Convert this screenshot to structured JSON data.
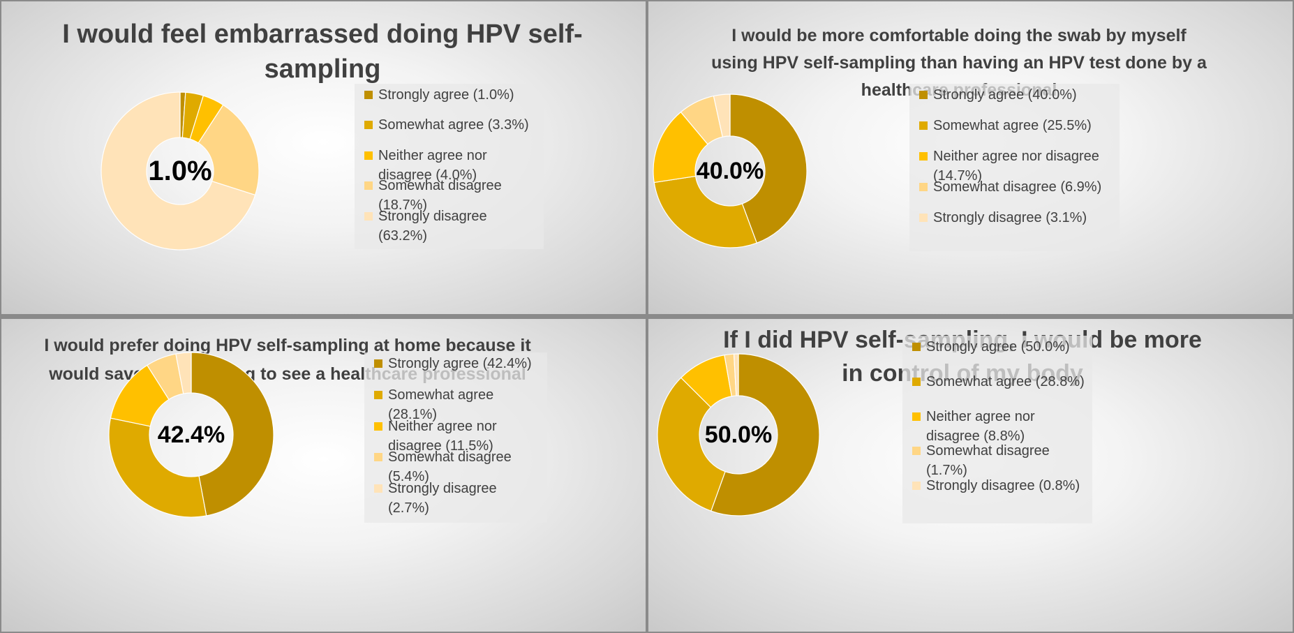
{
  "colors": [
    "#bf8f00",
    "#dfaa00",
    "#ffc000",
    "#ffd685",
    "#ffe3b8"
  ],
  "chart_data": [
    {
      "type": "pie",
      "title": "I would feel embarrassed doing HPV self-sampling",
      "center_label": "1.0%",
      "categories": [
        "Strongly agree",
        "Somewhat agree",
        "Neither agree nor disagree",
        "Somewhat disagree",
        "Strongly disagree"
      ],
      "values": [
        1.0,
        3.3,
        4.0,
        18.7,
        63.2
      ],
      "legend_labels": [
        "Strongly agree (1.0%)",
        "Somewhat agree (3.3%)",
        "Neither agree nor disagree (4.0%)",
        "Somewhat disagree (18.7%)",
        "Strongly disagree (63.2%)"
      ],
      "legend_position": "right"
    },
    {
      "type": "pie",
      "title": "I would be more comfortable doing the swab by myself using HPV self-sampling than having an HPV test done by a healthcare professional",
      "center_label": "40.0%",
      "categories": [
        "Strongly agree",
        "Somewhat agree",
        "Neither agree nor disagree",
        "Somewhat disagree",
        "Strongly disagree"
      ],
      "values": [
        40.0,
        25.5,
        14.7,
        6.9,
        3.1
      ],
      "legend_labels": [
        "Strongly agree (40.0%)",
        "Somewhat agree (25.5%)",
        "Neither agree nor disagree (14.7%)",
        "Somewhat disagree (6.9%)",
        "Strongly disagree (3.1%)"
      ],
      "legend_position": "right"
    },
    {
      "type": "pie",
      "title": "I would prefer doing HPV self-sampling at home because it would save me travelling to see a healthcare professional",
      "center_label": "42.4%",
      "categories": [
        "Strongly agree",
        "Somewhat agree",
        "Neither agree nor disagree",
        "Somewhat disagree",
        "Strongly disagree"
      ],
      "values": [
        42.4,
        28.1,
        11.5,
        5.4,
        2.7
      ],
      "legend_labels": [
        "Strongly agree (42.4%)",
        "Somewhat agree (28.1%)",
        "Neither agree nor disagree (11.5%)",
        "Somewhat disagree (5.4%)",
        "Strongly disagree (2.7%)"
      ],
      "legend_position": "right"
    },
    {
      "type": "pie",
      "title": "If I did HPV self-sampling, I would be more in control of my body",
      "center_label": "50.0%",
      "categories": [
        "Strongly agree",
        "Somewhat agree",
        "Neither agree nor disagree",
        "Somewhat disagree",
        "Strongly disagree"
      ],
      "values": [
        50.0,
        28.8,
        8.8,
        1.7,
        0.8
      ],
      "legend_labels": [
        "Strongly agree (50.0%)",
        "Somewhat agree (28.8%)",
        "Neither agree nor disagree (8.8%)",
        "Somewhat disagree (1.7%)",
        "Strongly disagree (0.8%)"
      ],
      "legend_position": "right"
    }
  ]
}
